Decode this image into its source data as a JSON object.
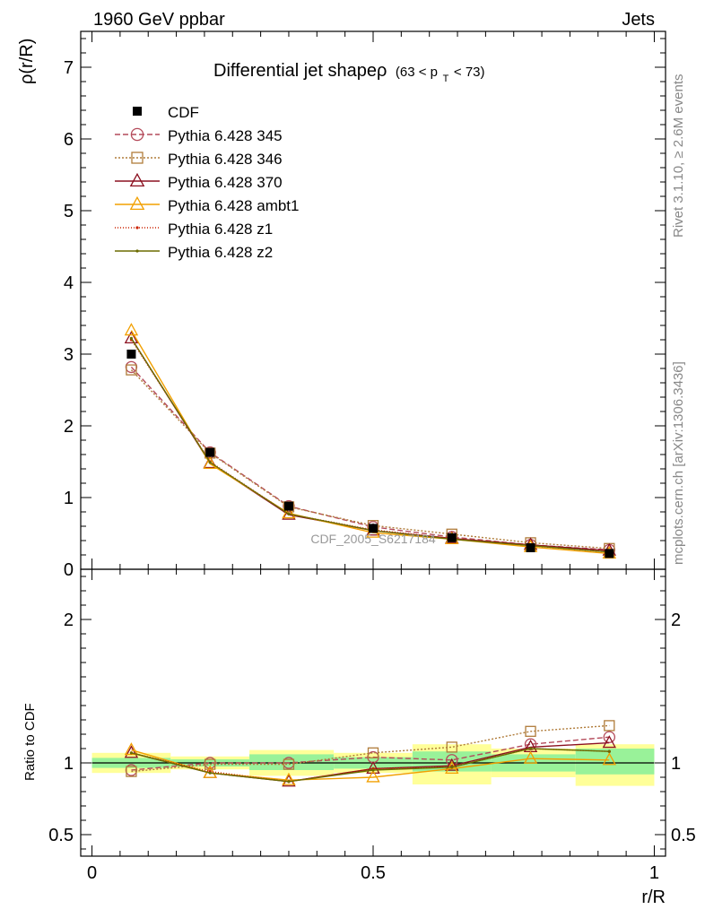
{
  "header": {
    "left": "1960 GeV ppbar",
    "right": "Jets",
    "side_top": "Rivet 3.1.10, ≥ 2.6M events",
    "side_bottom": "mcplots.cern.ch [arXiv:1306.3436]",
    "watermark": "CDF_2005_S6217184"
  },
  "chart_data": [
    {
      "type": "line",
      "title": "Differential jet shapeρ",
      "title_cut_pre": "(63 < p",
      "title_cut_sub": "T",
      "title_cut_post": " < 73)",
      "ylabel": "ρ(r/R)",
      "ylim": [
        0,
        7.5
      ],
      "yticks": [
        0,
        1,
        2,
        3,
        4,
        5,
        6,
        7
      ],
      "x": [
        0.07,
        0.21,
        0.35,
        0.5,
        0.64,
        0.78,
        0.92
      ],
      "data": {
        "name": "CDF",
        "values": [
          3.0,
          1.63,
          0.88,
          0.57,
          0.44,
          0.3,
          0.22
        ]
      },
      "series": [
        {
          "name": "Pythia 6.428 345",
          "color": "#b44a5a",
          "dash": "6,3",
          "marker": "circle",
          "values": [
            2.82,
            1.63,
            0.88,
            0.59,
            0.45,
            0.34,
            0.27
          ]
        },
        {
          "name": "Pythia 6.428 346",
          "color": "#b07c3a",
          "dash": "2,2",
          "marker": "square",
          "values": [
            2.78,
            1.62,
            0.87,
            0.61,
            0.49,
            0.37,
            0.29
          ]
        },
        {
          "name": "Pythia 6.428 370",
          "color": "#8b1020",
          "dash": "",
          "marker": "triangle",
          "values": [
            3.22,
            1.48,
            0.76,
            0.54,
            0.43,
            0.34,
            0.26
          ]
        },
        {
          "name": "Pythia 6.428 ambt1",
          "color": "#f2a000",
          "dash": "",
          "marker": "triangle",
          "values": [
            3.33,
            1.47,
            0.78,
            0.51,
            0.42,
            0.31,
            0.22
          ]
        },
        {
          "name": "Pythia 6.428 z1",
          "color": "#cc2200",
          "dash": "1,2",
          "marker": "dot",
          "values": [
            3.2,
            1.5,
            0.77,
            0.55,
            0.43,
            0.33,
            0.24
          ]
        },
        {
          "name": "Pythia 6.428 z2",
          "color": "#6b6b00",
          "dash": "",
          "marker": "dot",
          "values": [
            3.22,
            1.49,
            0.77,
            0.54,
            0.42,
            0.33,
            0.24
          ]
        }
      ]
    },
    {
      "type": "line",
      "ylabel": "Ratio to CDF",
      "xlabel": "r/R",
      "ylim": [
        0.35,
        2.35
      ],
      "yticks": [
        0.5,
        1,
        2
      ],
      "xlim": [
        -0.02,
        1.02
      ],
      "xticks": [
        0,
        0.5,
        1
      ],
      "bands": [
        {
          "x": [
            0.0,
            0.14
          ],
          "inner": [
            0.965,
            1.035
          ],
          "outer": [
            0.93,
            1.07
          ]
        },
        {
          "x": [
            0.14,
            0.28
          ],
          "inner": [
            0.975,
            1.025
          ],
          "outer": [
            0.955,
            1.045
          ]
        },
        {
          "x": [
            0.28,
            0.43
          ],
          "inner": [
            0.95,
            1.06
          ],
          "outer": [
            0.91,
            1.09
          ]
        },
        {
          "x": [
            0.43,
            0.57
          ],
          "inner": [
            0.96,
            1.04
          ],
          "outer": [
            0.93,
            1.07
          ]
        },
        {
          "x": [
            0.57,
            0.71
          ],
          "inner": [
            0.94,
            1.08
          ],
          "outer": [
            0.85,
            1.13
          ]
        },
        {
          "x": [
            0.71,
            0.86
          ],
          "inner": [
            0.94,
            1.06
          ],
          "outer": [
            0.9,
            1.1
          ]
        },
        {
          "x": [
            0.86,
            1.0
          ],
          "inner": [
            0.92,
            1.1
          ],
          "outer": [
            0.84,
            1.13
          ]
        }
      ],
      "ratios": [
        [
          0.95,
          1.0,
          1.0,
          1.04,
          1.02,
          1.13,
          1.18
        ],
        [
          0.94,
          0.99,
          0.99,
          1.07,
          1.11,
          1.22,
          1.26
        ],
        [
          1.07,
          0.93,
          0.87,
          0.96,
          0.98,
          1.11,
          1.14
        ],
        [
          1.09,
          0.93,
          0.88,
          0.9,
          0.96,
          1.03,
          1.02
        ],
        [
          1.07,
          0.94,
          0.87,
          0.96,
          0.97,
          1.1,
          1.08
        ],
        [
          1.07,
          0.93,
          0.87,
          0.95,
          0.97,
          1.1,
          1.08
        ]
      ]
    }
  ]
}
